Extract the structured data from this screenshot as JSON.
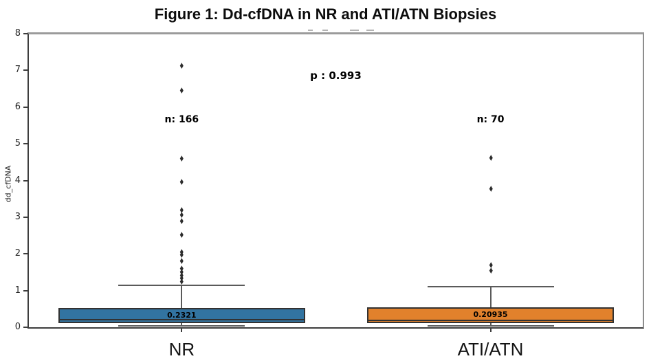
{
  "figure": {
    "title": "Figure 1: Dd-cfDNA in NR and ATI/ATN Biopsies"
  },
  "chart_data": {
    "type": "box",
    "title": "Figure 1: Dd-cfDNA in NR and ATI/ATN Biopsies",
    "xlabel": "",
    "ylabel": "dd_cfDNA",
    "ylim": [
      0,
      8
    ],
    "yticks": [
      0,
      1,
      2,
      3,
      4,
      5,
      6,
      7,
      8
    ],
    "grid": false,
    "legend": null,
    "categories": [
      "NR",
      "ATI/ATN"
    ],
    "groups": [
      {
        "label": "NR",
        "n_label": "n: 166",
        "median_label": "0.2321",
        "color": "#3274a1",
        "x_frac": 0.249,
        "stats": {
          "median": 0.2321,
          "q1": 0.14,
          "q3": 0.55,
          "whisker_low": 0.05,
          "whisker_high": 1.16
        },
        "outliers": [
          7.13,
          6.47,
          4.6,
          3.97,
          3.2,
          3.08,
          2.9,
          2.52,
          2.07,
          1.98,
          1.82,
          1.62,
          1.52,
          1.43,
          1.34,
          1.26
        ]
      },
      {
        "label": "ATI/ATN",
        "n_label": "n: 70",
        "median_label": "0.20935",
        "color": "#e1812c",
        "x_frac": 0.752,
        "stats": {
          "median": 0.20935,
          "q1": 0.14,
          "q3": 0.57,
          "whisker_low": 0.05,
          "whisker_high": 1.13
        },
        "outliers": [
          4.62,
          3.79,
          1.7,
          1.55
        ]
      }
    ],
    "p_annotation": {
      "text": "p : 0.993",
      "x_frac": 0.5,
      "y_value": 6.87
    },
    "n_label_y_value": 5.68,
    "layout": {
      "box_width_frac": 0.402,
      "cap_width_frac": 0.206,
      "legend_position": "none",
      "flier_marker": "thin-diamond"
    }
  },
  "decorations": {
    "clipped_subtitle_fragments": [
      {
        "x": 448,
        "w": 7
      },
      {
        "x": 469,
        "w": 8
      },
      {
        "x": 509,
        "w": 13
      },
      {
        "x": 533,
        "w": 11
      }
    ]
  },
  "colors": {
    "nr_box": "#3274a1",
    "ati_box": "#e1812c",
    "box_edge": "#323232",
    "whisker": "#5a5a5a",
    "flier": "#2d2d2d",
    "spine_dark": "#3d3d3d",
    "spine_light": "#9b9b9b",
    "text": "#111111"
  }
}
